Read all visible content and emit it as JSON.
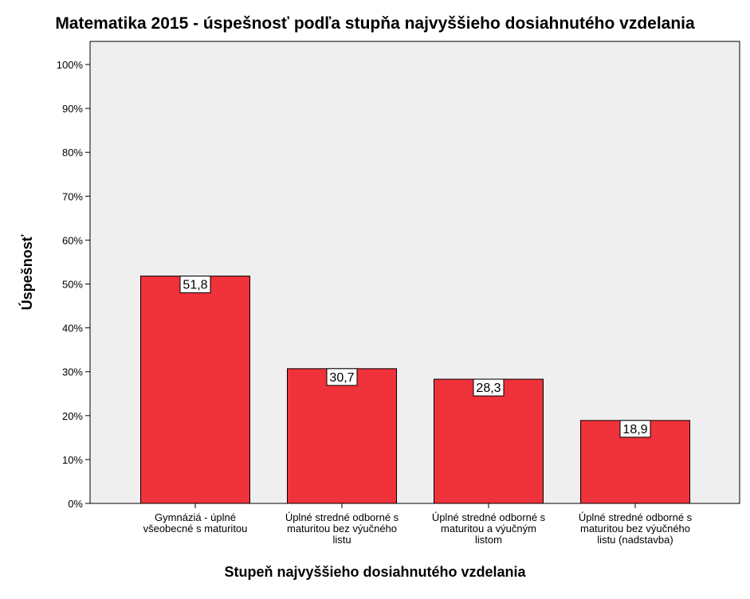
{
  "chart_data": {
    "type": "bar",
    "title": "Matematika 2015 - úspešnosť podľa stupňa najvyššieho dosiahnutého vzdelania",
    "xlabel": "Stupeň najvyššieho dosiahnutého vzdelania",
    "ylabel": "Úspešnosť",
    "categories": [
      [
        "Gymnáziá - úplné",
        "všeobecné s maturitou"
      ],
      [
        "Úplné stredné odborné s",
        "maturitou bez výučného",
        "listu"
      ],
      [
        "Úplné stredné odborné s",
        "maturitou a výučným",
        "listom"
      ],
      [
        "Úplné stredné odborné s",
        "maturitou bez výučného",
        "listu (nadstavba)"
      ]
    ],
    "values": [
      51.8,
      30.7,
      28.3,
      18.9
    ],
    "data_labels": [
      "51,8",
      "30,7",
      "28,3",
      "18,9"
    ],
    "ylim": [
      0,
      100
    ],
    "yticks": [
      "0%",
      "10%",
      "20%",
      "30%",
      "40%",
      "50%",
      "60%",
      "70%",
      "80%",
      "90%",
      "100%"
    ],
    "grid": false,
    "legend": "none",
    "colors": {
      "bar_fill": "#f0323a",
      "bar_stroke": "#000000",
      "plot_background": "#efefef",
      "label_background": "#ffffff"
    }
  }
}
